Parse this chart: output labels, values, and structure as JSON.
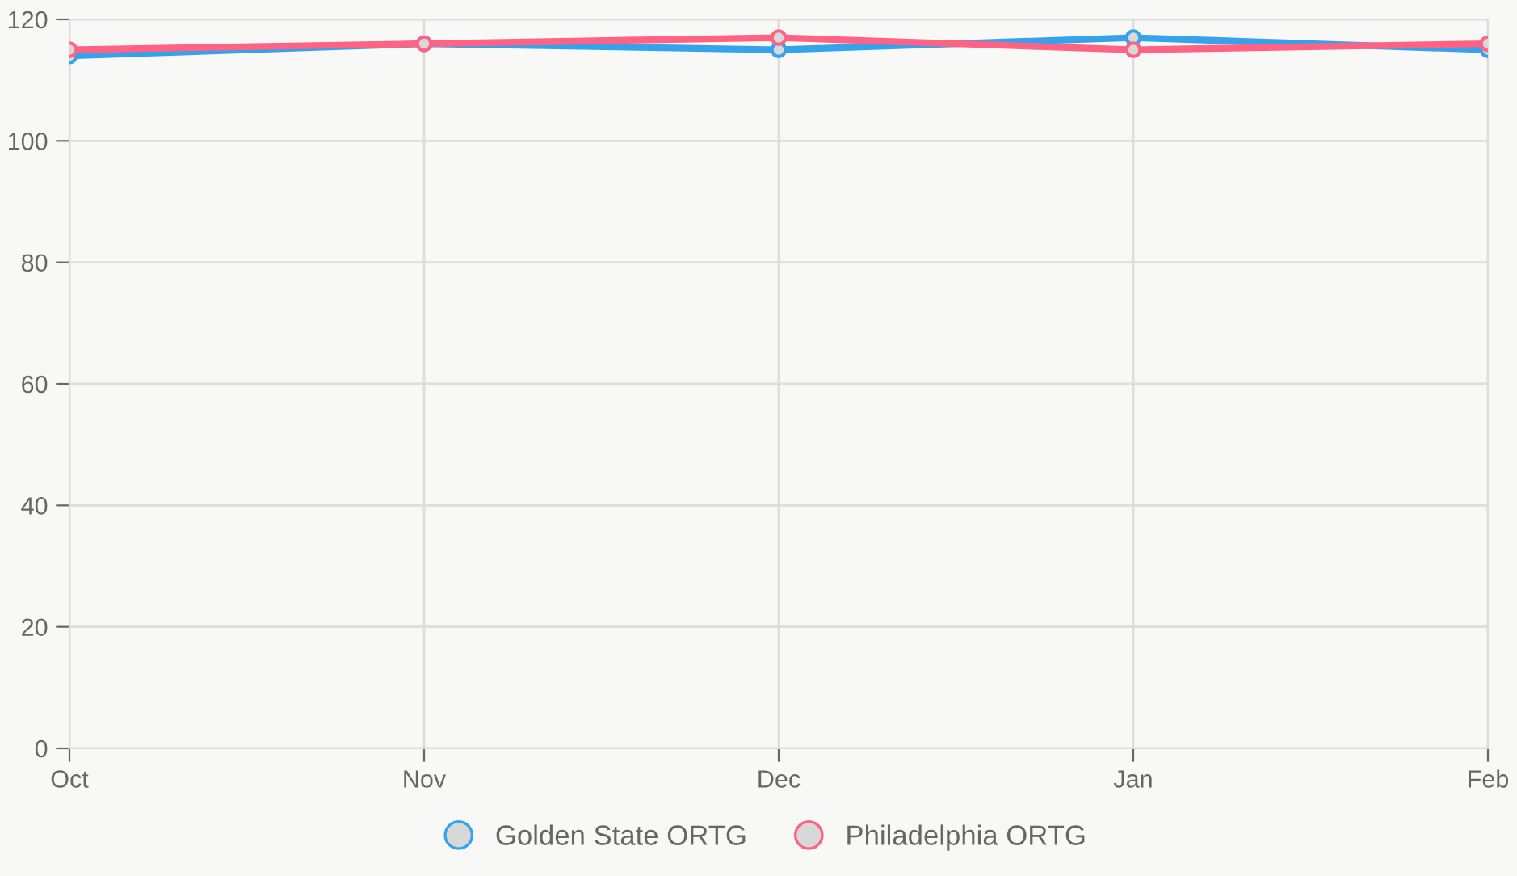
{
  "chart_data": {
    "type": "line",
    "categories": [
      "Oct",
      "Nov",
      "Dec",
      "Jan",
      "Feb"
    ],
    "series": [
      {
        "name": "Golden State ORTG",
        "color": "#36a2eb",
        "values": [
          114,
          116,
          115,
          117,
          115
        ]
      },
      {
        "name": "Philadelphia ORTG",
        "color": "#ff6384",
        "values": [
          115,
          116,
          117,
          115,
          116
        ]
      }
    ],
    "ylim": [
      0,
      120
    ],
    "yticks": [
      0,
      20,
      40,
      60,
      80,
      100,
      120
    ],
    "grid": true,
    "legend": "bottom",
    "marker": "circle",
    "line_style": "solid"
  }
}
